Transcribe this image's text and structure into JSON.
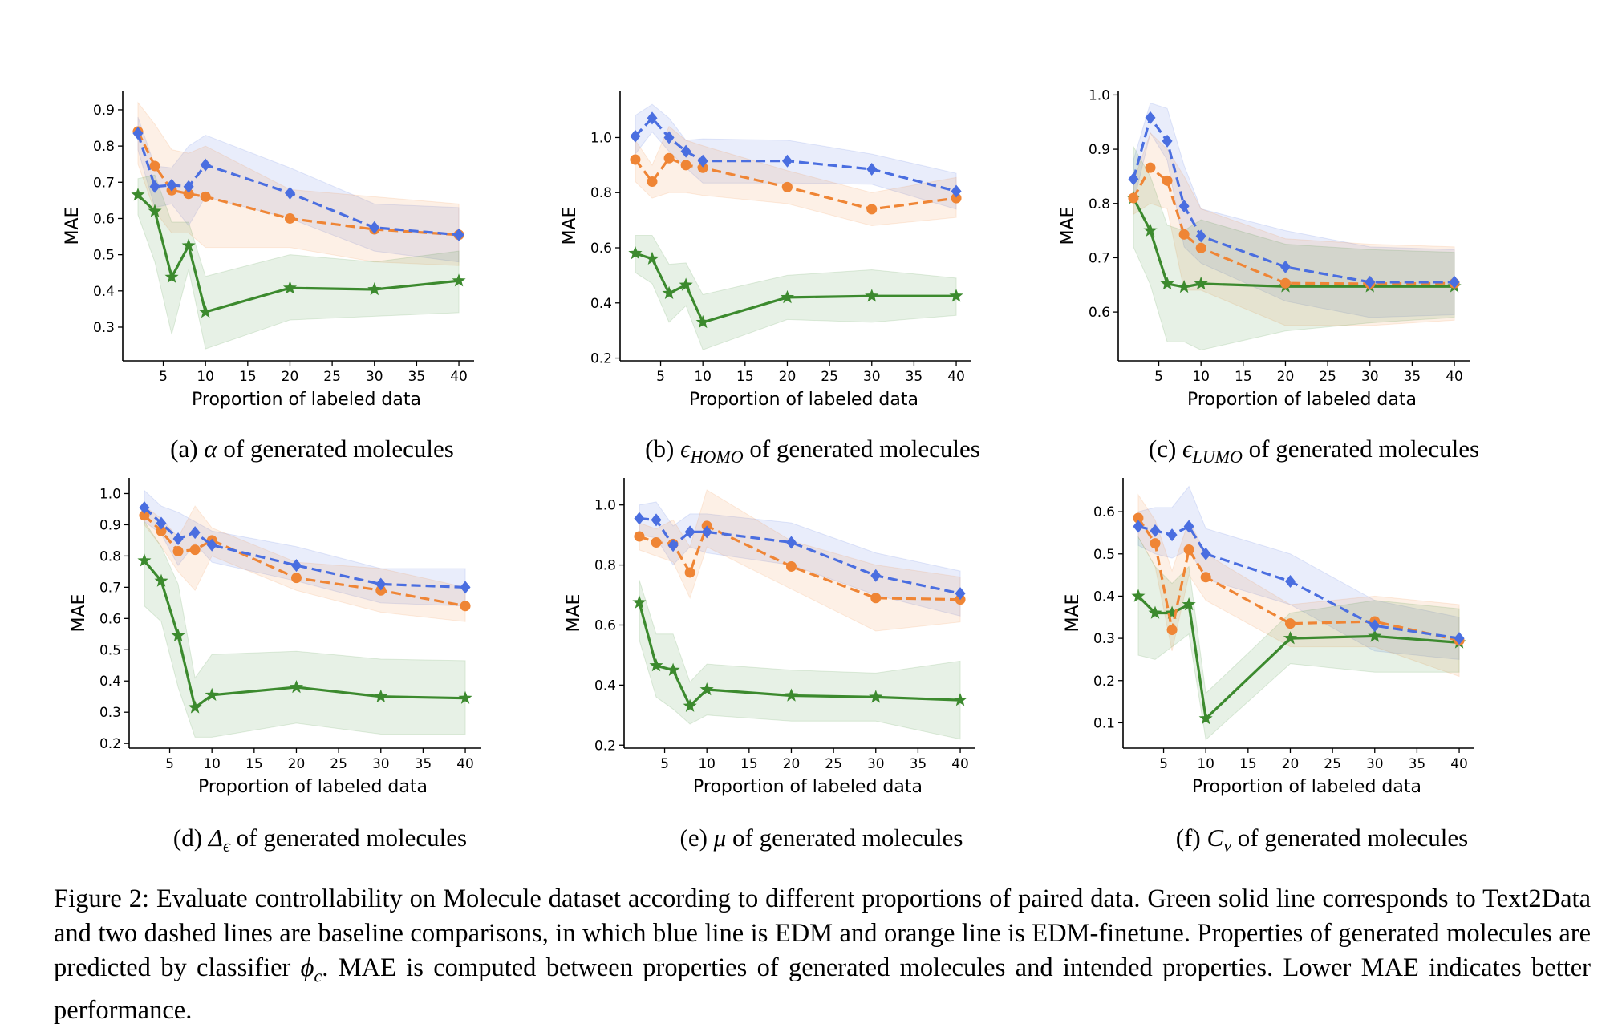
{
  "chart_data": [
    {
      "id": "a",
      "type": "line",
      "xlabel": "Proportion of labeled data",
      "ylabel": "MAE",
      "ylim": [
        0.207,
        0.953
      ],
      "xlim": [
        0.2,
        41.8
      ],
      "xticks": [
        5,
        10,
        15,
        20,
        25,
        30,
        35,
        40
      ],
      "yticks": [
        0.3,
        0.4,
        0.5,
        0.6,
        0.7,
        0.8,
        0.9
      ],
      "caption": {
        "prefix": "(a) ",
        "symbol": "α",
        "sub": "",
        "suffix": " of generated molecules"
      },
      "x": [
        2,
        4,
        6,
        8,
        10,
        20,
        30,
        40
      ],
      "series": [
        {
          "color": "#4a6ee0",
          "style": "dashed",
          "marker": "diamond",
          "values": [
            0.835,
            0.688,
            0.692,
            0.688,
            0.748,
            0.67,
            0.575,
            0.555
          ],
          "lower": [
            0.79,
            0.63,
            0.64,
            0.58,
            0.66,
            0.6,
            0.51,
            0.48
          ],
          "upper": [
            0.88,
            0.745,
            0.74,
            0.8,
            0.83,
            0.74,
            0.64,
            0.63
          ]
        },
        {
          "color": "#ef8535",
          "style": "dashed",
          "marker": "circle",
          "values": [
            0.84,
            0.745,
            0.678,
            0.668,
            0.66,
            0.6,
            0.57,
            0.555
          ],
          "lower": [
            0.75,
            0.62,
            0.56,
            0.56,
            0.52,
            0.52,
            0.48,
            0.47
          ],
          "upper": [
            0.92,
            0.86,
            0.79,
            0.78,
            0.8,
            0.68,
            0.66,
            0.64
          ]
        },
        {
          "color": "#3c8a2e",
          "style": "solid",
          "marker": "star",
          "values": [
            0.665,
            0.62,
            0.438,
            0.525,
            0.342,
            0.408,
            0.404,
            0.428
          ],
          "lower": [
            0.61,
            0.48,
            0.28,
            0.46,
            0.24,
            0.32,
            0.33,
            0.34
          ],
          "upper": [
            0.71,
            0.72,
            0.59,
            0.59,
            0.44,
            0.5,
            0.48,
            0.51
          ]
        }
      ]
    },
    {
      "id": "b",
      "type": "line",
      "xlabel": "Proportion of labeled data",
      "ylabel": "MAE",
      "ylim": [
        0.19,
        1.17
      ],
      "xlim": [
        0.2,
        41.8
      ],
      "xticks": [
        5,
        10,
        15,
        20,
        25,
        30,
        35,
        40
      ],
      "yticks": [
        0.2,
        0.4,
        0.6,
        0.8,
        1.0
      ],
      "caption": {
        "prefix": "(b) ",
        "symbol": "ϵ",
        "sub": "HOMO",
        "suffix": " of generated molecules"
      },
      "x": [
        2,
        4,
        6,
        8,
        10,
        20,
        30,
        40
      ],
      "series": [
        {
          "color": "#4a6ee0",
          "style": "dashed",
          "marker": "diamond",
          "values": [
            1.005,
            1.07,
            1.0,
            0.95,
            0.915,
            0.915,
            0.885,
            0.805
          ],
          "lower": [
            0.94,
            1.02,
            0.95,
            0.89,
            0.835,
            0.835,
            0.83,
            0.74
          ],
          "upper": [
            1.08,
            1.12,
            1.07,
            0.99,
            0.995,
            0.99,
            0.94,
            0.87
          ]
        },
        {
          "color": "#ef8535",
          "style": "dashed",
          "marker": "circle",
          "values": [
            0.92,
            0.84,
            0.925,
            0.9,
            0.89,
            0.82,
            0.74,
            0.78
          ],
          "lower": [
            0.84,
            0.78,
            0.8,
            0.8,
            0.79,
            0.76,
            0.68,
            0.71
          ],
          "upper": [
            0.99,
            0.9,
            1.04,
            0.99,
            0.97,
            0.88,
            0.8,
            0.855
          ]
        },
        {
          "color": "#3c8a2e",
          "style": "solid",
          "marker": "star",
          "values": [
            0.58,
            0.56,
            0.435,
            0.465,
            0.33,
            0.42,
            0.425,
            0.425
          ],
          "lower": [
            0.51,
            0.47,
            0.33,
            0.39,
            0.23,
            0.34,
            0.33,
            0.355
          ],
          "upper": [
            0.645,
            0.645,
            0.54,
            0.545,
            0.43,
            0.5,
            0.52,
            0.49
          ]
        }
      ]
    },
    {
      "id": "c",
      "type": "line",
      "xlabel": "Proportion of labeled data",
      "ylabel": "MAE",
      "ylim": [
        0.51,
        1.008
      ],
      "xlim": [
        0.2,
        41.8
      ],
      "xticks": [
        5,
        10,
        15,
        20,
        25,
        30,
        35,
        40
      ],
      "yticks": [
        0.6,
        0.7,
        0.8,
        0.9,
        1.0
      ],
      "caption": {
        "prefix": "(c) ",
        "symbol": "ϵ",
        "sub": "LUMO",
        "suffix": " of generated molecules"
      },
      "x": [
        2,
        4,
        6,
        8,
        10,
        20,
        30,
        40
      ],
      "series": [
        {
          "color": "#4a6ee0",
          "style": "dashed",
          "marker": "diamond",
          "values": [
            0.845,
            0.958,
            0.915,
            0.795,
            0.74,
            0.683,
            0.655,
            0.655
          ],
          "lower": [
            0.8,
            0.93,
            0.88,
            0.72,
            0.69,
            0.62,
            0.59,
            0.595
          ],
          "upper": [
            0.88,
            0.985,
            0.975,
            0.87,
            0.79,
            0.75,
            0.72,
            0.715
          ]
        },
        {
          "color": "#ef8535",
          "style": "dashed",
          "marker": "circle",
          "values": [
            0.81,
            0.866,
            0.842,
            0.743,
            0.718,
            0.653,
            0.652,
            0.653
          ],
          "lower": [
            0.78,
            0.8,
            0.79,
            0.64,
            0.64,
            0.575,
            0.575,
            0.585
          ],
          "upper": [
            0.84,
            0.93,
            0.9,
            0.85,
            0.79,
            0.735,
            0.725,
            0.72
          ]
        },
        {
          "color": "#3c8a2e",
          "style": "solid",
          "marker": "star",
          "values": [
            0.81,
            0.75,
            0.652,
            0.646,
            0.652,
            0.647,
            0.647,
            0.647
          ],
          "lower": [
            0.72,
            0.65,
            0.545,
            0.545,
            0.53,
            0.565,
            0.58,
            0.59
          ],
          "upper": [
            0.905,
            0.85,
            0.76,
            0.75,
            0.77,
            0.725,
            0.715,
            0.71
          ]
        }
      ]
    },
    {
      "id": "d",
      "type": "line",
      "xlabel": "Proportion of labeled data",
      "ylabel": "MAE",
      "ylim": [
        0.185,
        1.05
      ],
      "xlim": [
        0.2,
        41.8
      ],
      "xticks": [
        5,
        10,
        15,
        20,
        25,
        30,
        35,
        40
      ],
      "yticks": [
        0.2,
        0.3,
        0.4,
        0.5,
        0.6,
        0.7,
        0.8,
        0.9,
        1.0
      ],
      "caption": {
        "prefix": "(d) ",
        "symbol": "Δ",
        "sub": "ϵ",
        "suffix": " of generated molecules"
      },
      "x": [
        2,
        4,
        6,
        8,
        10,
        20,
        30,
        40
      ],
      "series": [
        {
          "color": "#4a6ee0",
          "style": "dashed",
          "marker": "diamond",
          "values": [
            0.955,
            0.905,
            0.855,
            0.875,
            0.835,
            0.77,
            0.71,
            0.7
          ],
          "lower": [
            0.91,
            0.87,
            0.77,
            0.84,
            0.78,
            0.72,
            0.65,
            0.64
          ],
          "upper": [
            1.01,
            0.96,
            0.94,
            0.91,
            0.88,
            0.83,
            0.76,
            0.76
          ]
        },
        {
          "color": "#ef8535",
          "style": "dashed",
          "marker": "circle",
          "values": [
            0.93,
            0.88,
            0.815,
            0.82,
            0.85,
            0.73,
            0.69,
            0.64
          ],
          "lower": [
            0.9,
            0.83,
            0.75,
            0.69,
            0.8,
            0.69,
            0.62,
            0.59
          ],
          "upper": [
            0.96,
            0.92,
            0.86,
            0.96,
            0.89,
            0.78,
            0.76,
            0.7
          ]
        },
        {
          "color": "#3c8a2e",
          "style": "solid",
          "marker": "star",
          "values": [
            0.785,
            0.72,
            0.545,
            0.315,
            0.355,
            0.38,
            0.35,
            0.345
          ],
          "lower": [
            0.64,
            0.59,
            0.38,
            0.22,
            0.22,
            0.265,
            0.23,
            0.23
          ],
          "upper": [
            0.91,
            0.83,
            0.71,
            0.41,
            0.485,
            0.495,
            0.47,
            0.465
          ]
        }
      ]
    },
    {
      "id": "e",
      "type": "line",
      "xlabel": "Proportion of labeled data",
      "ylabel": "MAE",
      "ylim": [
        0.19,
        1.09
      ],
      "xlim": [
        0.2,
        41.8
      ],
      "xticks": [
        5,
        10,
        15,
        20,
        25,
        30,
        35,
        40
      ],
      "yticks": [
        0.2,
        0.4,
        0.6,
        0.8,
        1.0
      ],
      "caption": {
        "prefix": "(e) ",
        "symbol": "μ",
        "sub": "",
        "suffix": " of generated molecules"
      },
      "x": [
        2,
        4,
        6,
        8,
        10,
        20,
        30,
        40
      ],
      "series": [
        {
          "color": "#4a6ee0",
          "style": "dashed",
          "marker": "diamond",
          "values": [
            0.955,
            0.95,
            0.865,
            0.91,
            0.91,
            0.875,
            0.765,
            0.705
          ],
          "lower": [
            0.9,
            0.89,
            0.8,
            0.86,
            0.84,
            0.8,
            0.7,
            0.63
          ],
          "upper": [
            1.0,
            1.01,
            0.93,
            0.97,
            0.97,
            0.94,
            0.84,
            0.78
          ]
        },
        {
          "color": "#ef8535",
          "style": "dashed",
          "marker": "circle",
          "values": [
            0.895,
            0.875,
            0.87,
            0.775,
            0.93,
            0.795,
            0.69,
            0.685
          ],
          "lower": [
            0.85,
            0.83,
            0.81,
            0.69,
            0.86,
            0.72,
            0.58,
            0.61
          ],
          "upper": [
            0.94,
            0.92,
            0.95,
            0.86,
            1.05,
            0.88,
            0.8,
            0.76
          ]
        },
        {
          "color": "#3c8a2e",
          "style": "solid",
          "marker": "star",
          "values": [
            0.675,
            0.465,
            0.45,
            0.33,
            0.385,
            0.365,
            0.36,
            0.35
          ],
          "lower": [
            0.55,
            0.36,
            0.32,
            0.27,
            0.3,
            0.28,
            0.28,
            0.22
          ],
          "upper": [
            0.75,
            0.57,
            0.57,
            0.41,
            0.47,
            0.45,
            0.44,
            0.48
          ]
        }
      ]
    },
    {
      "id": "f",
      "type": "line",
      "xlabel": "Proportion of labeled data",
      "ylabel": "MAE",
      "ylim": [
        0.04,
        0.68
      ],
      "xlim": [
        0.2,
        41.8
      ],
      "xticks": [
        5,
        10,
        15,
        20,
        25,
        30,
        35,
        40
      ],
      "yticks": [
        0.1,
        0.2,
        0.3,
        0.4,
        0.5,
        0.6
      ],
      "caption": {
        "prefix": "(f) ",
        "symbol": "C",
        "sub": "v",
        "suffix": " of generated molecules"
      },
      "x": [
        2,
        4,
        6,
        8,
        10,
        20,
        30,
        40
      ],
      "series": [
        {
          "color": "#4a6ee0",
          "style": "dashed",
          "marker": "diamond",
          "values": [
            0.565,
            0.555,
            0.545,
            0.565,
            0.5,
            0.435,
            0.33,
            0.3
          ],
          "lower": [
            0.52,
            0.5,
            0.49,
            0.51,
            0.44,
            0.38,
            0.27,
            0.25
          ],
          "upper": [
            0.6,
            0.61,
            0.61,
            0.66,
            0.56,
            0.5,
            0.39,
            0.35
          ]
        },
        {
          "color": "#ef8535",
          "style": "dashed",
          "marker": "circle",
          "values": [
            0.585,
            0.525,
            0.32,
            0.51,
            0.445,
            0.335,
            0.34,
            0.295
          ],
          "lower": [
            0.54,
            0.47,
            0.27,
            0.45,
            0.39,
            0.28,
            0.28,
            0.21
          ],
          "upper": [
            0.64,
            0.58,
            0.46,
            0.58,
            0.5,
            0.38,
            0.4,
            0.38
          ]
        },
        {
          "color": "#3c8a2e",
          "style": "solid",
          "marker": "star",
          "values": [
            0.4,
            0.36,
            0.36,
            0.38,
            0.11,
            0.3,
            0.305,
            0.29
          ],
          "lower": [
            0.26,
            0.25,
            0.28,
            0.31,
            0.06,
            0.24,
            0.22,
            0.22
          ],
          "upper": [
            0.54,
            0.47,
            0.43,
            0.47,
            0.17,
            0.36,
            0.39,
            0.37
          ]
        }
      ]
    }
  ],
  "figure_caption": {
    "before": "Figure 2: Evaluate controllability on Molecule dataset according to different proportions of paired data. Green solid line corresponds to Text2Data and two dashed lines are baseline comparisons, in which blue line is EDM and orange line is EDM-finetune. Properties of generated molecules are predicted by classifier ",
    "symbol": "ϕ",
    "sub": "c",
    "after": ". MAE is computed between properties of generated molecules and intended properties. Lower MAE indicates better performance."
  }
}
